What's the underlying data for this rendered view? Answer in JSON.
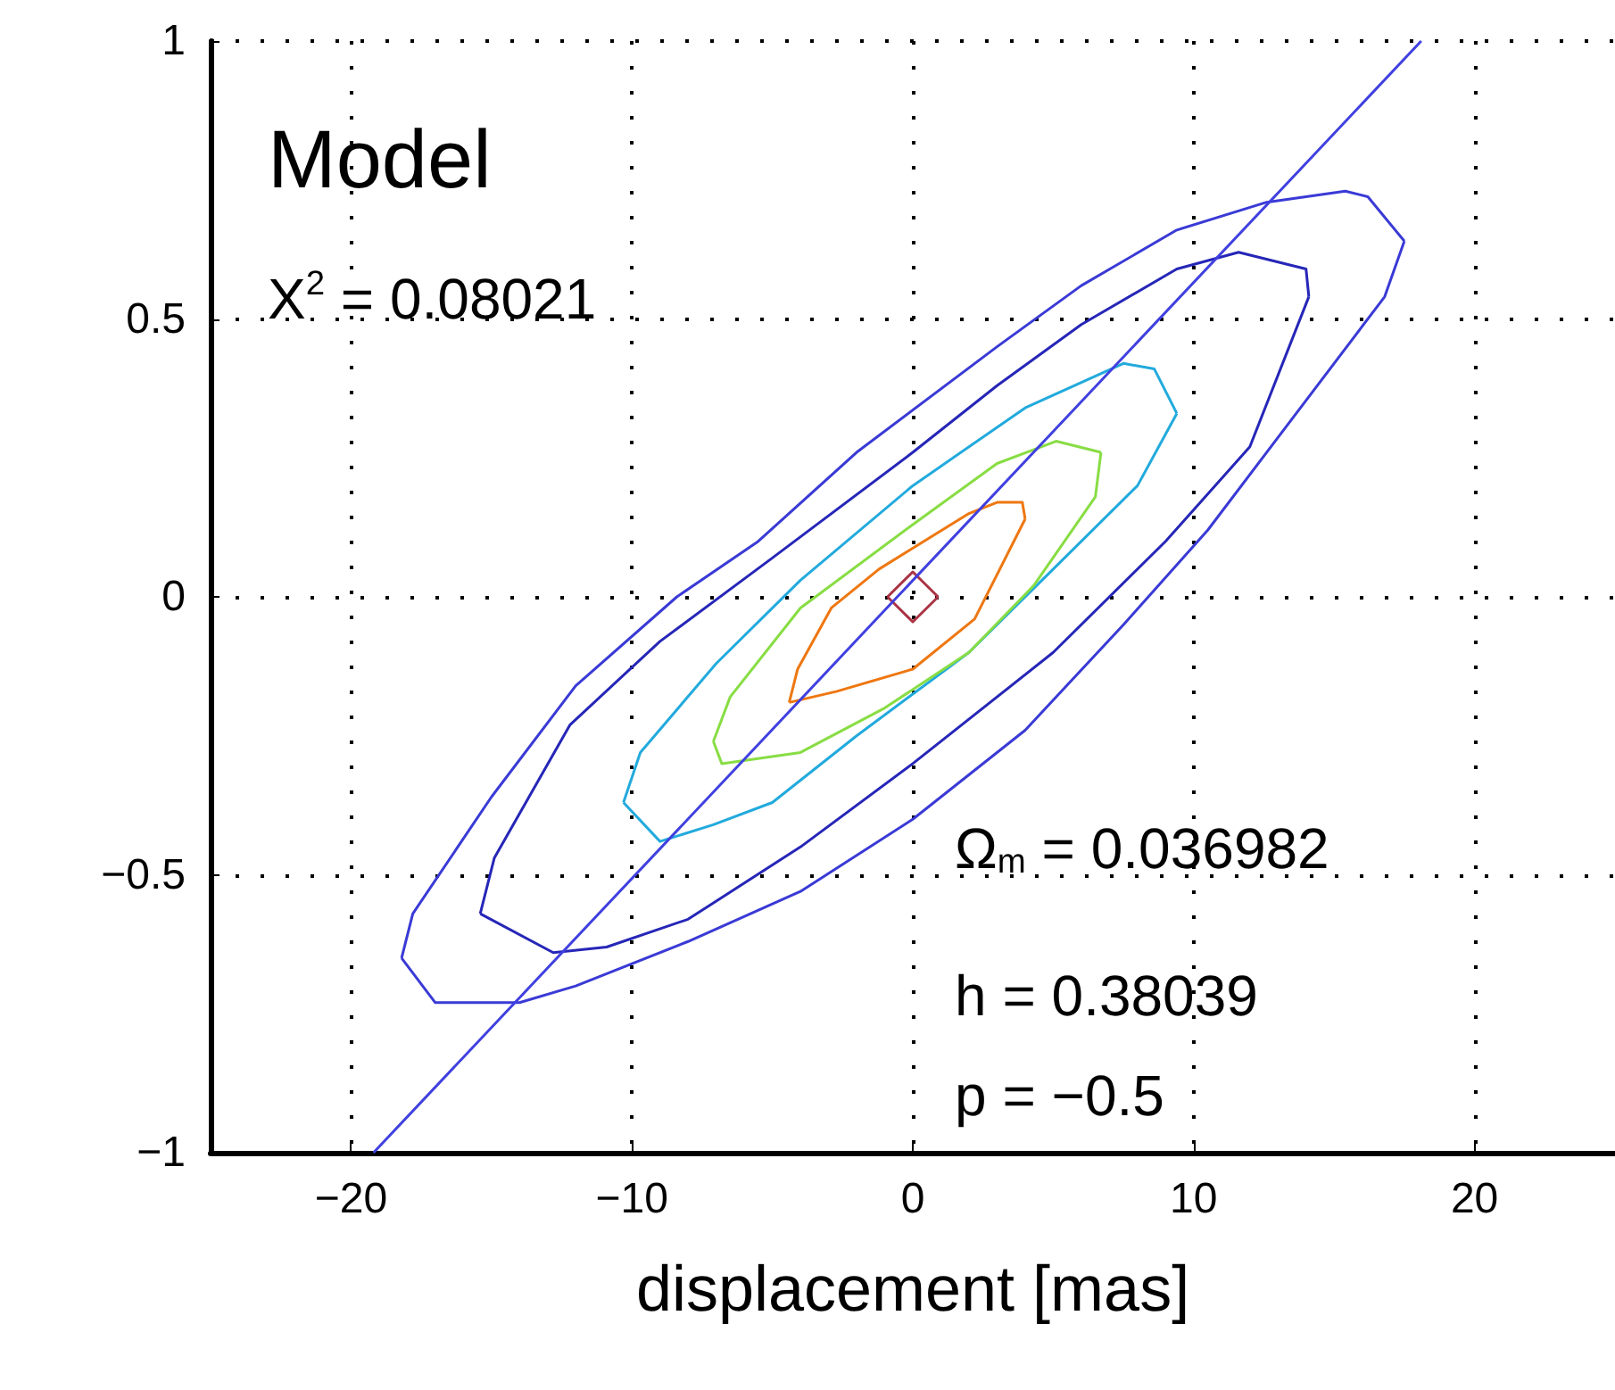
{
  "chart_data": {
    "type": "line",
    "xlabel": "displacement [mas]",
    "xlim": [
      -25,
      25
    ],
    "xticks": [
      {
        "value": -20,
        "label": "−20"
      },
      {
        "value": -10,
        "label": "−10"
      },
      0,
      10,
      20
    ],
    "ylim": [
      -1,
      1
    ],
    "yticks": [
      {
        "value": -1,
        "label": "−1"
      },
      {
        "value": -0.5,
        "label": "−0.5"
      },
      0,
      0.5,
      1
    ],
    "grid": true,
    "marker": "none",
    "line_style": "solid",
    "annotations": [
      "Model",
      "X$^{2}$ = 0.08021",
      "Ω$_{m}$ = 0.036982",
      "h = 0.38039",
      "p = −0.5"
    ],
    "series": [
      {
        "color": "#3a3ad6",
        "x": [
          -18.2,
          -17.8,
          -15,
          -12,
          -8.4,
          -5.5,
          -2,
          3,
          6,
          9.4,
          12.6,
          15.4,
          16.2,
          17.5
        ],
        "values": [
          -0.65,
          -0.57,
          -0.36,
          -0.16,
          0,
          0.1,
          0.26,
          0.45,
          0.56,
          0.66,
          0.71,
          0.73,
          0.72,
          0.64
        ]
      },
      {
        "color": "#3a3ad6",
        "x": [
          -18.2,
          -17,
          -14,
          -12,
          -8,
          -4,
          0,
          4,
          7.5,
          10.5,
          13.5,
          16.8,
          17.5
        ],
        "values": [
          -0.65,
          -0.73,
          -0.73,
          -0.7,
          -0.62,
          -0.53,
          -0.4,
          -0.24,
          -0.05,
          0.12,
          0.32,
          0.54,
          0.64
        ]
      },
      {
        "color": "#2626b8",
        "x": [
          -15.4,
          -14.9,
          -12.2,
          -9,
          -5,
          0,
          3,
          6,
          9.4,
          11.6,
          14,
          14.1
        ],
        "values": [
          -0.57,
          -0.47,
          -0.23,
          -0.08,
          0.07,
          0.26,
          0.38,
          0.49,
          0.59,
          0.62,
          0.59,
          0.54
        ]
      },
      {
        "color": "#2626b8",
        "x": [
          -15.4,
          -12.8,
          -10.9,
          -8,
          -4,
          0,
          5,
          9,
          12,
          14.1
        ],
        "values": [
          -0.57,
          -0.64,
          -0.63,
          -0.58,
          -0.45,
          -0.3,
          -0.1,
          0.1,
          0.27,
          0.54
        ]
      },
      {
        "color": "#22aadd",
        "x": [
          -10.3,
          -9.7,
          -7,
          -4,
          0,
          4,
          7.5,
          8.6,
          9.4
        ],
        "values": [
          -0.37,
          -0.28,
          -0.12,
          0.03,
          0.2,
          0.34,
          0.42,
          0.41,
          0.33
        ]
      },
      {
        "color": "#22aadd",
        "x": [
          -10.3,
          -9,
          -7.1,
          -5,
          -2,
          2,
          5,
          8,
          9.4
        ],
        "values": [
          -0.37,
          -0.44,
          -0.41,
          -0.37,
          -0.25,
          -0.1,
          0.05,
          0.2,
          0.33
        ]
      },
      {
        "color": "#88dd44",
        "x": [
          -7.1,
          -6.5,
          -4,
          0,
          3,
          5.1,
          6.7
        ],
        "values": [
          -0.26,
          -0.18,
          -0.02,
          0.13,
          0.24,
          0.28,
          0.26
        ]
      },
      {
        "color": "#88dd44",
        "x": [
          -7.1,
          -6.8,
          -4,
          -1,
          2,
          4.3,
          6.5,
          6.7
        ],
        "values": [
          -0.26,
          -0.3,
          -0.28,
          -0.2,
          -0.1,
          0.02,
          0.18,
          0.26
        ]
      },
      {
        "color": "#ee7711",
        "x": [
          -4.4,
          -4.1,
          -2.9,
          -1.2,
          2,
          3,
          3.9,
          4
        ],
        "values": [
          -0.19,
          -0.13,
          -0.02,
          0.05,
          0.15,
          0.17,
          0.17,
          0.14
        ]
      },
      {
        "color": "#ee7711",
        "x": [
          -4.4,
          -2.7,
          0,
          2.2,
          4
        ],
        "values": [
          -0.19,
          -0.17,
          -0.13,
          -0.04,
          0.14
        ]
      },
      {
        "color": "#aa3344",
        "x": [
          -0.9,
          0,
          0.9
        ],
        "values": [
          0,
          0.045,
          0
        ]
      },
      {
        "color": "#aa3344",
        "x": [
          -0.9,
          0,
          0.9
        ],
        "values": [
          0,
          -0.045,
          0
        ]
      },
      {
        "color": "#4040e0",
        "x": [
          -19.2,
          18.1
        ],
        "values": [
          -1,
          1
        ]
      }
    ]
  }
}
